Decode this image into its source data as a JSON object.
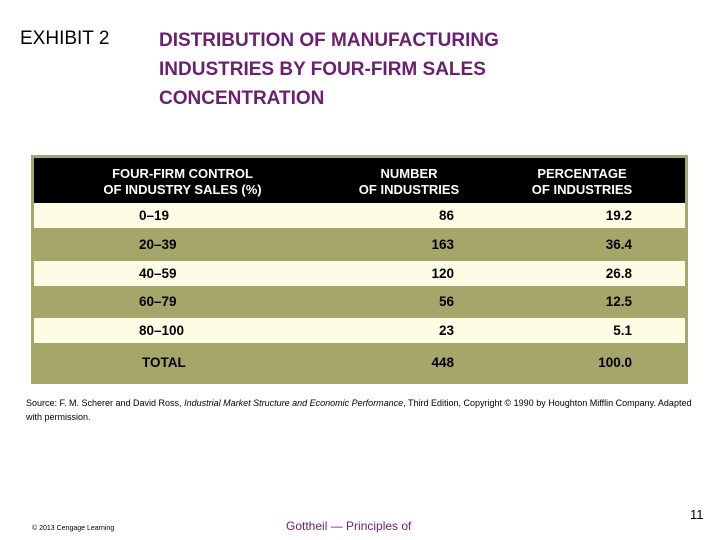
{
  "header": {
    "exhibit": "EXHIBIT 2",
    "title_lines": [
      "DISTRIBUTION OF MANUFACTURING",
      "INDUSTRIES BY FOUR-FIRM SALES",
      "CONCENTRATION"
    ]
  },
  "table": {
    "headers": [
      [
        "FOUR-FIRM CONTROL",
        "OF INDUSTRY SALES (%)"
      ],
      [
        "NUMBER",
        "OF INDUSTRIES"
      ],
      [
        "PERCENTAGE",
        "OF INDUSTRIES"
      ]
    ],
    "rows": [
      [
        "0–19",
        "86",
        "19.2"
      ],
      [
        "20–39",
        "163",
        "36.4"
      ],
      [
        "40–59",
        "120",
        "26.8"
      ],
      [
        "60–79",
        "56",
        "12.5"
      ],
      [
        "80–100",
        "23",
        "5.1"
      ],
      [
        "TOTAL",
        "448",
        "100.0"
      ]
    ]
  },
  "source": {
    "prefix": "Source: F. M. Scherer and David Ross, ",
    "italic": "Industrial Market Structure and Economic Performance",
    "suffix": ", Third Edition, Copyright © 1990 by Houghton Mifflin Company. Adapted with permission."
  },
  "footer": {
    "copyright": "© 2013 Cengage Learning",
    "title": "Gottheil — Principles of",
    "page": "11"
  },
  "colors": {
    "title": "#6b1f6f",
    "table_bg": "#a6a66b",
    "light_row": "#fdfde6",
    "header_bg": "#000000"
  }
}
